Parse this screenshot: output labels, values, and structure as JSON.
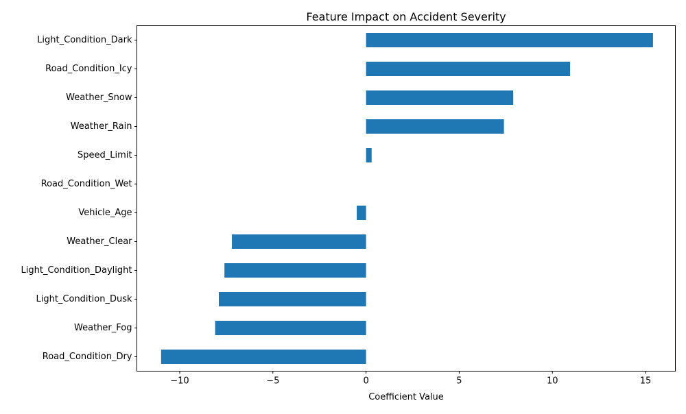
{
  "chart_data": {
    "type": "bar",
    "orientation": "horizontal",
    "title": "Feature Impact on Accident Severity",
    "xlabel": "Coefficient Value",
    "ylabel": "",
    "categories": [
      "Road_Condition_Dry",
      "Weather_Fog",
      "Light_Condition_Dusk",
      "Light_Condition_Daylight",
      "Weather_Clear",
      "Vehicle_Age",
      "Road_Condition_Wet",
      "Speed_Limit",
      "Weather_Rain",
      "Weather_Snow",
      "Road_Condition_Icy",
      "Light_Condition_Dark"
    ],
    "values": [
      -11.0,
      -8.1,
      -7.9,
      -7.6,
      -7.2,
      -0.5,
      0.0,
      0.3,
      7.4,
      7.9,
      10.95,
      15.4
    ],
    "xlim": [
      -12.3,
      16.6
    ],
    "xticks": [
      -10,
      -5,
      0,
      5,
      10,
      15
    ],
    "xtick_labels": [
      "−10",
      "−5",
      "0",
      "5",
      "10",
      "15"
    ],
    "bar_color": "#1f77b4",
    "grid": false,
    "legend": "none"
  }
}
